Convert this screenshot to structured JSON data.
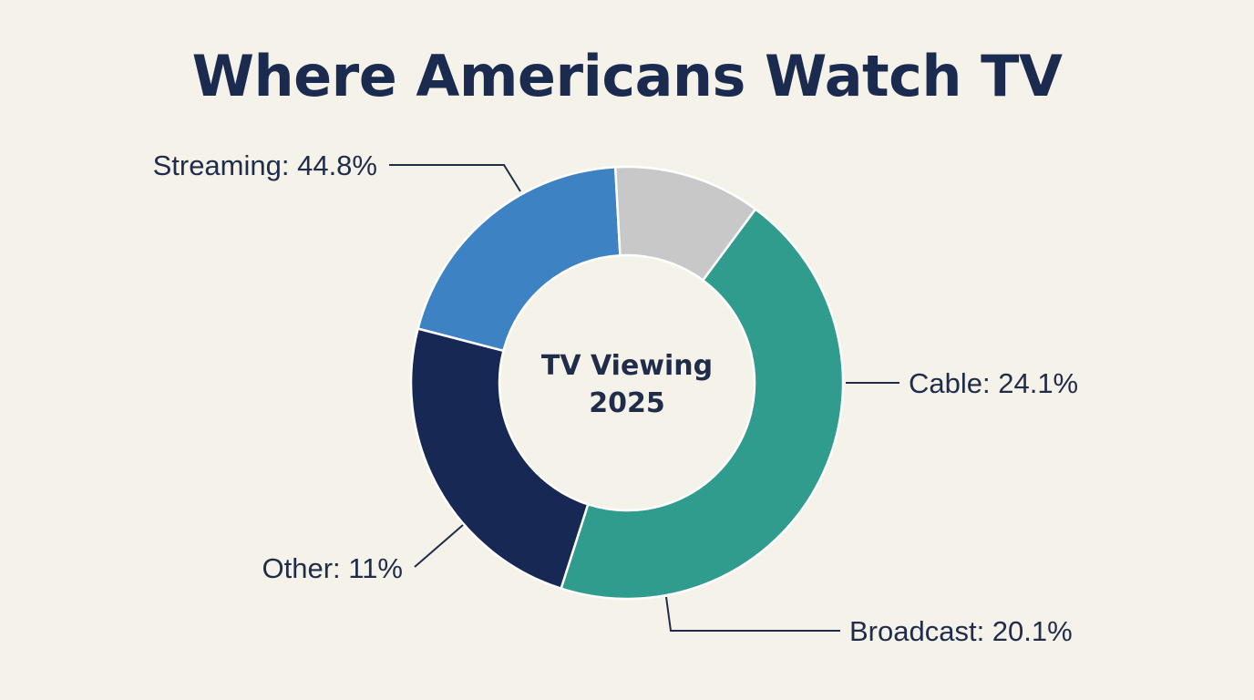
{
  "chart_data": {
    "type": "pie",
    "style": "donut",
    "title": "Where Americans Watch TV",
    "center_label": [
      "TV Viewing",
      "2025"
    ],
    "slices": [
      {
        "label": "Streaming",
        "value": 44.8,
        "value_text": "44.8%",
        "color": "#2f9c8e"
      },
      {
        "label": "Cable",
        "value": 24.1,
        "value_text": "24.1%",
        "color": "#172854"
      },
      {
        "label": "Broadcast",
        "value": 20.1,
        "value_text": "20.1%",
        "color": "#3d82c3"
      },
      {
        "label": "Other",
        "value": 11,
        "value_text": "11%",
        "color": "#c8c8c8"
      }
    ]
  }
}
